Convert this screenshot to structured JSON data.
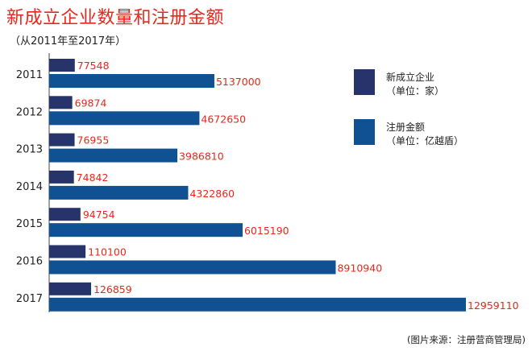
{
  "title": "新成立企业数量和注册金额",
  "subtitle": "（从2011年至2017年）",
  "source": "(图片来源：注册营商管理局)",
  "colors": {
    "enterprises": "#27346b",
    "capital": "#0f5193",
    "label": "#e8271c"
  },
  "legend": [
    {
      "name": "新成立企业",
      "unit": "（单位：家）"
    },
    {
      "name": "注册金额",
      "unit": "（单位：亿越盾）"
    }
  ],
  "chart_data": {
    "type": "bar",
    "orientation": "horizontal",
    "categories": [
      "2011",
      "2012",
      "2013",
      "2014",
      "2015",
      "2016",
      "2017"
    ],
    "series": [
      {
        "name": "新成立企业",
        "values": [
          77548,
          69874,
          76955,
          74842,
          94754,
          110100,
          126859
        ]
      },
      {
        "name": "注册金额",
        "values": [
          5137000,
          4672650,
          3986810,
          4322860,
          6015190,
          8910940,
          12959110
        ]
      }
    ],
    "legend_position": "top-right",
    "grid": false
  }
}
